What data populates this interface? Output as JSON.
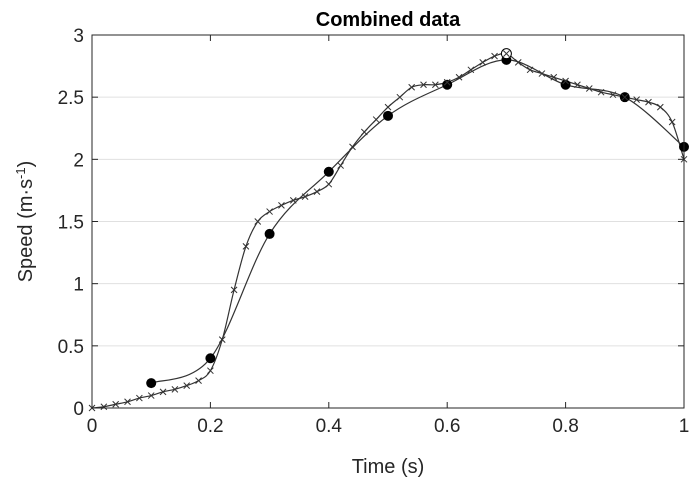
{
  "chart_data": {
    "type": "line",
    "title": "Combined data",
    "xlabel": "Time (s)",
    "ylabel_main": "Speed (m·s",
    "ylabel_sup": "-1",
    "ylabel_close": ")",
    "xlim": [
      0,
      1
    ],
    "ylim": [
      0,
      3
    ],
    "x_ticks": [
      0,
      0.2,
      0.4,
      0.6,
      0.8,
      1
    ],
    "x_tick_labels": [
      "0",
      "0.2",
      "0.4",
      "0.6",
      "0.8",
      "1"
    ],
    "y_ticks": [
      0,
      0.5,
      1,
      1.5,
      2,
      2.5,
      3
    ],
    "y_tick_labels": [
      "0",
      "0.5",
      "1",
      "1.5",
      "2",
      "2.5",
      "3"
    ],
    "grid": "y-major",
    "colors": {
      "axis": "#262626",
      "grid": "#e0e0e0",
      "line": "#333333",
      "marker": "#000000"
    },
    "series": [
      {
        "marker": "filled-circle",
        "x": [
          0.1,
          0.2,
          0.3,
          0.4,
          0.5,
          0.6,
          0.7,
          0.8,
          0.9,
          1.0
        ],
        "y": [
          0.2,
          0.4,
          1.4,
          1.9,
          2.35,
          2.6,
          2.8,
          2.6,
          2.5,
          2.1
        ]
      },
      {
        "marker": "open-circle",
        "x": [
          0.7
        ],
        "y": [
          2.85
        ]
      },
      {
        "marker": "cross",
        "x": [
          0,
          0.02,
          0.04,
          0.06,
          0.08,
          0.1,
          0.12,
          0.14,
          0.16,
          0.18,
          0.2,
          0.22,
          0.24,
          0.26,
          0.28,
          0.3,
          0.32,
          0.34,
          0.36,
          0.38,
          0.4,
          0.42,
          0.44,
          0.46,
          0.48,
          0.5,
          0.52,
          0.54,
          0.56,
          0.58,
          0.6,
          0.62,
          0.64,
          0.66,
          0.68,
          0.7,
          0.72,
          0.74,
          0.76,
          0.78,
          0.8,
          0.82,
          0.84,
          0.86,
          0.88,
          0.9,
          0.92,
          0.94,
          0.96,
          0.98,
          1.0
        ],
        "y": [
          0,
          0.01,
          0.03,
          0.05,
          0.08,
          0.1,
          0.13,
          0.15,
          0.18,
          0.22,
          0.3,
          0.55,
          0.95,
          1.3,
          1.5,
          1.58,
          1.63,
          1.67,
          1.7,
          1.74,
          1.8,
          1.95,
          2.1,
          2.22,
          2.32,
          2.42,
          2.5,
          2.58,
          2.6,
          2.6,
          2.62,
          2.66,
          2.72,
          2.78,
          2.83,
          2.85,
          2.78,
          2.72,
          2.69,
          2.66,
          2.63,
          2.6,
          2.57,
          2.54,
          2.52,
          2.5,
          2.48,
          2.46,
          2.42,
          2.3,
          2.0
        ]
      }
    ]
  }
}
